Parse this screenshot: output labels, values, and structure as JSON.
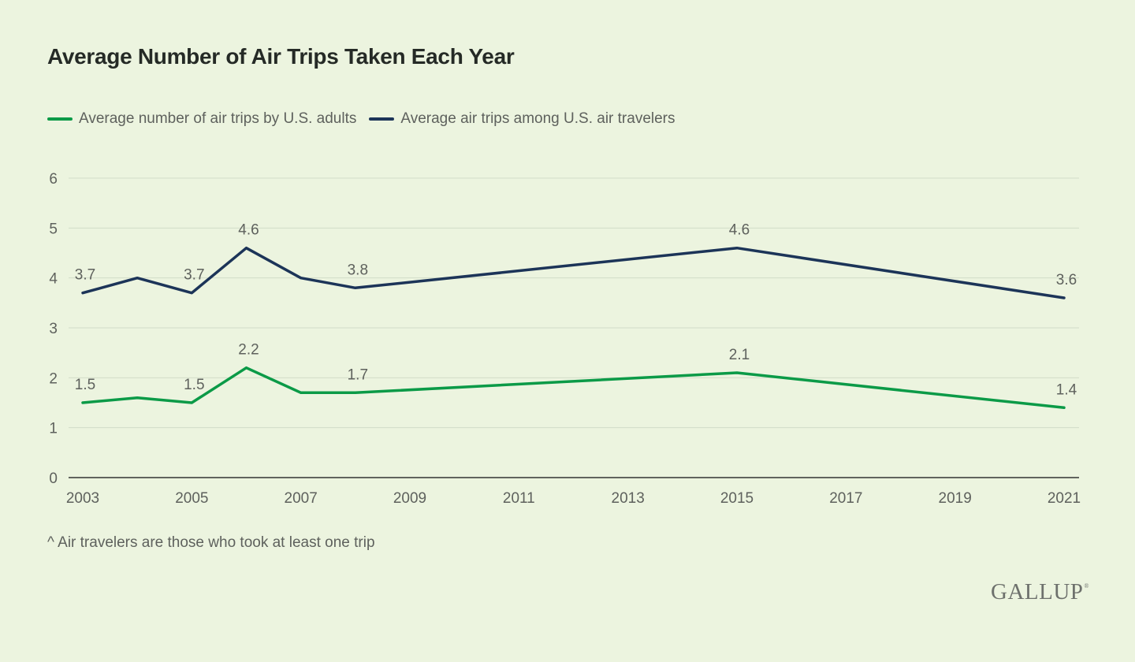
{
  "title": "Average Number of Air Trips Taken Each Year",
  "footnote": "^ Air travelers are those who took at least one trip",
  "logo": "GALLUP",
  "colors": {
    "background": "#ecf4df",
    "adults": "#0b9a47",
    "travelers": "#1c3458",
    "grid": "#d2dcc8",
    "axis": "#333333",
    "text": "#5e615d"
  },
  "chart_data": {
    "type": "line",
    "title": "Average Number of Air Trips Taken Each Year",
    "xlabel": "",
    "ylabel": "",
    "xlim": [
      2003,
      2021
    ],
    "ylim": [
      0,
      6
    ],
    "x_ticks": [
      "2003",
      "2005",
      "2007",
      "2009",
      "2011",
      "2013",
      "2015",
      "2017",
      "2019",
      "2021"
    ],
    "y_ticks": [
      "0",
      "1",
      "2",
      "3",
      "4",
      "5",
      "6"
    ],
    "grid": true,
    "legend_position": "top-left",
    "series": [
      {
        "name": "Average number of air trips by U.S. adults",
        "color": "#0b9a47",
        "x": [
          2003,
          2004,
          2005,
          2006,
          2007,
          2008,
          2015,
          2021
        ],
        "values": [
          1.5,
          1.6,
          1.5,
          2.2,
          1.7,
          1.7,
          2.1,
          1.4
        ],
        "labels": [
          {
            "x": 2003,
            "value": 1.5,
            "text": "1.5"
          },
          {
            "x": 2005,
            "value": 1.5,
            "text": "1.5"
          },
          {
            "x": 2006,
            "value": 2.2,
            "text": "2.2"
          },
          {
            "x": 2008,
            "value": 1.7,
            "text": "1.7"
          },
          {
            "x": 2015,
            "value": 2.1,
            "text": "2.1"
          },
          {
            "x": 2021,
            "value": 1.4,
            "text": "1.4"
          }
        ]
      },
      {
        "name": "Average air trips among U.S. air travelers",
        "color": "#1c3458",
        "x": [
          2003,
          2004,
          2005,
          2006,
          2007,
          2008,
          2015,
          2021
        ],
        "values": [
          3.7,
          4.0,
          3.7,
          4.6,
          4.0,
          3.8,
          4.6,
          3.6
        ],
        "labels": [
          {
            "x": 2003,
            "value": 3.7,
            "text": "3.7"
          },
          {
            "x": 2005,
            "value": 3.7,
            "text": "3.7"
          },
          {
            "x": 2006,
            "value": 4.6,
            "text": "4.6"
          },
          {
            "x": 2008,
            "value": 3.8,
            "text": "3.8"
          },
          {
            "x": 2015,
            "value": 4.6,
            "text": "4.6"
          },
          {
            "x": 2021,
            "value": 3.6,
            "text": "3.6"
          }
        ]
      }
    ]
  }
}
